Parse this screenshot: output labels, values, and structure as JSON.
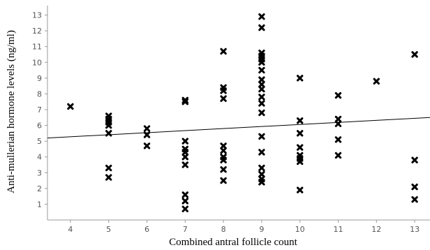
{
  "chart_data": {
    "type": "scatter",
    "title": "",
    "xlabel": "Combined antral follicle count",
    "ylabel": "Anti-mullerian hormone levels (ng/ml)",
    "xlim": [
      3.4,
      13.4
    ],
    "ylim": [
      0,
      13.6
    ],
    "x_ticks": [
      4,
      5,
      6,
      7,
      8,
      9,
      10,
      11,
      12,
      13
    ],
    "y_ticks": [
      1,
      2,
      3,
      4,
      5,
      6,
      7,
      8,
      9,
      10,
      11,
      12,
      13
    ],
    "grid": false,
    "marker": "x",
    "series": [
      {
        "points": [
          {
            "x": 4,
            "y": 7.2
          },
          {
            "x": 5,
            "y": 6.6
          },
          {
            "x": 5,
            "y": 6.4
          },
          {
            "x": 5,
            "y": 6.2
          },
          {
            "x": 5,
            "y": 6.0
          },
          {
            "x": 5,
            "y": 5.5
          },
          {
            "x": 5,
            "y": 3.3
          },
          {
            "x": 5,
            "y": 2.7
          },
          {
            "x": 6,
            "y": 5.8
          },
          {
            "x": 6,
            "y": 5.4
          },
          {
            "x": 6,
            "y": 4.7
          },
          {
            "x": 7,
            "y": 7.6
          },
          {
            "x": 7,
            "y": 7.5
          },
          {
            "x": 7,
            "y": 5.0
          },
          {
            "x": 7,
            "y": 4.5
          },
          {
            "x": 7,
            "y": 4.3
          },
          {
            "x": 7,
            "y": 4.0
          },
          {
            "x": 7,
            "y": 3.5
          },
          {
            "x": 7,
            "y": 1.6
          },
          {
            "x": 7,
            "y": 1.2
          },
          {
            "x": 7,
            "y": 0.7
          },
          {
            "x": 8,
            "y": 10.7
          },
          {
            "x": 8,
            "y": 8.4
          },
          {
            "x": 8,
            "y": 8.2
          },
          {
            "x": 8,
            "y": 7.7
          },
          {
            "x": 8,
            "y": 4.7
          },
          {
            "x": 8,
            "y": 4.4
          },
          {
            "x": 8,
            "y": 4.0
          },
          {
            "x": 8,
            "y": 3.8
          },
          {
            "x": 8,
            "y": 3.2
          },
          {
            "x": 8,
            "y": 2.5
          },
          {
            "x": 9,
            "y": 12.9
          },
          {
            "x": 9,
            "y": 12.2
          },
          {
            "x": 9,
            "y": 10.6
          },
          {
            "x": 9,
            "y": 10.4
          },
          {
            "x": 9,
            "y": 10.2
          },
          {
            "x": 9,
            "y": 10.0
          },
          {
            "x": 9,
            "y": 9.5
          },
          {
            "x": 9,
            "y": 8.9
          },
          {
            "x": 9,
            "y": 8.6
          },
          {
            "x": 9,
            "y": 8.3
          },
          {
            "x": 9,
            "y": 7.8
          },
          {
            "x": 9,
            "y": 7.4
          },
          {
            "x": 9,
            "y": 6.8
          },
          {
            "x": 9,
            "y": 5.3
          },
          {
            "x": 9,
            "y": 4.3
          },
          {
            "x": 9,
            "y": 3.3
          },
          {
            "x": 9,
            "y": 2.9
          },
          {
            "x": 9,
            "y": 2.6
          },
          {
            "x": 9,
            "y": 2.4
          },
          {
            "x": 10,
            "y": 9.0
          },
          {
            "x": 10,
            "y": 6.3
          },
          {
            "x": 10,
            "y": 5.5
          },
          {
            "x": 10,
            "y": 4.6
          },
          {
            "x": 10,
            "y": 4.1
          },
          {
            "x": 10,
            "y": 3.9
          },
          {
            "x": 10,
            "y": 3.7
          },
          {
            "x": 10,
            "y": 1.9
          },
          {
            "x": 11,
            "y": 7.9
          },
          {
            "x": 11,
            "y": 6.4
          },
          {
            "x": 11,
            "y": 6.1
          },
          {
            "x": 11,
            "y": 5.1
          },
          {
            "x": 11,
            "y": 4.1
          },
          {
            "x": 12,
            "y": 8.8
          },
          {
            "x": 13,
            "y": 10.5
          },
          {
            "x": 13,
            "y": 3.8
          },
          {
            "x": 13,
            "y": 2.1
          },
          {
            "x": 13,
            "y": 1.3
          }
        ]
      }
    ],
    "fit_line": {
      "x": [
        3.4,
        13.4
      ],
      "y": [
        5.2,
        6.5
      ]
    }
  }
}
